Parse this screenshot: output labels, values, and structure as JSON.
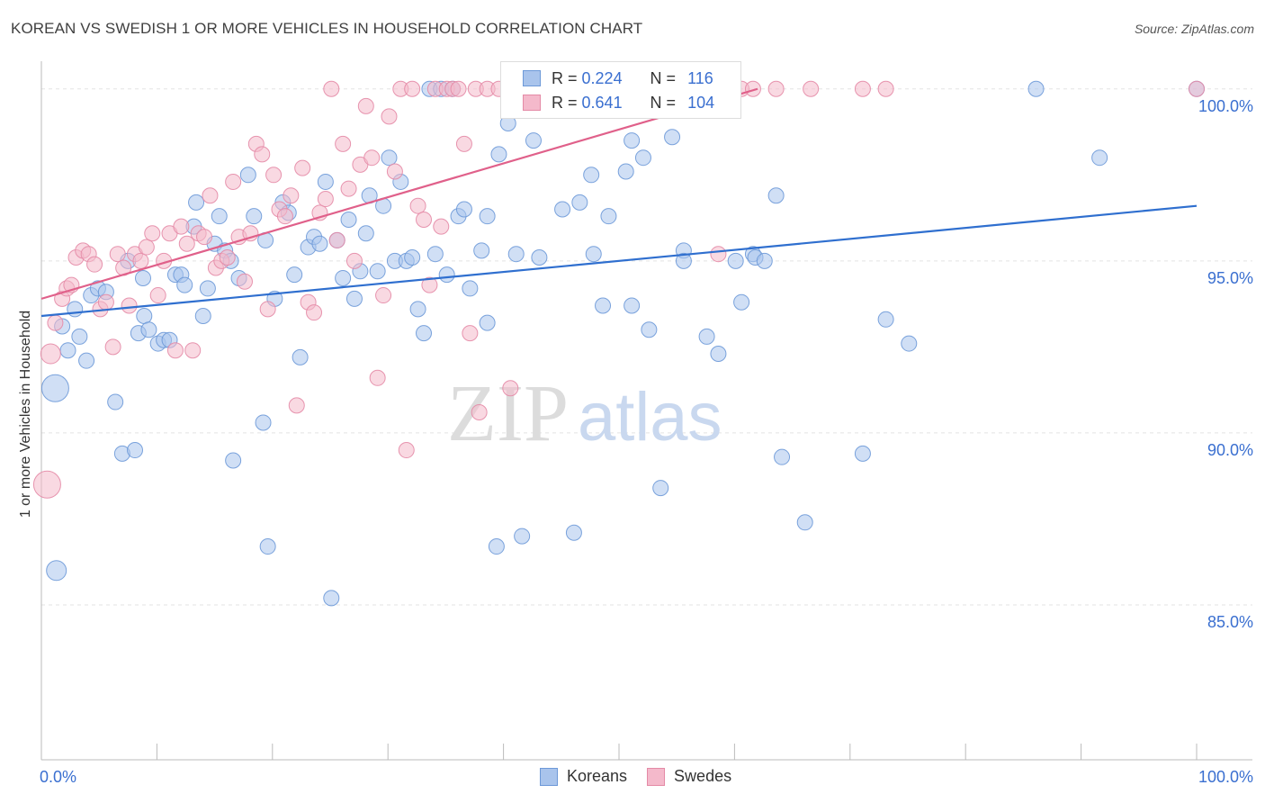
{
  "title": "KOREAN VS SWEDISH 1 OR MORE VEHICLES IN HOUSEHOLD CORRELATION CHART",
  "source": "Source: ZipAtlas.com",
  "watermark": {
    "part1": "ZIP",
    "part2": "atlas"
  },
  "colors": {
    "koreans_fill": "#a9c4ec",
    "koreans_stroke": "#6d99d8",
    "koreans_line": "#2f6fcf",
    "swedes_fill": "#f4b9cb",
    "swedes_stroke": "#e48aa6",
    "swedes_line": "#e0608a",
    "tick_label": "#3a6fd0",
    "grid": "#e3e3e3"
  },
  "legend": {
    "rows": [
      {
        "r_label": "R =",
        "r_value": "0.224",
        "n_label": "N =",
        "n_value": "116"
      },
      {
        "r_label": "R =",
        "r_value": "0.641",
        "n_label": "N =",
        "n_value": "104"
      }
    ]
  },
  "bottom_legend": [
    "Koreans",
    "Swedes"
  ],
  "chart_data": {
    "type": "scatter",
    "title": "KOREAN VS SWEDISH 1 OR MORE VEHICLES IN HOUSEHOLD CORRELATION CHART",
    "xlabel": "",
    "ylabel": "1 or more Vehicles in Household",
    "xlim": [
      0,
      100
    ],
    "ylim": [
      80.5,
      100.7
    ],
    "x_tick_labels": [
      "0.0%",
      "100.0%"
    ],
    "y_ticks": [
      100,
      95,
      90,
      85
    ],
    "y_tick_labels": [
      "100.0%",
      "95.0%",
      "90.0%",
      "85.0%"
    ],
    "grid": true,
    "series": [
      {
        "name": "Koreans",
        "r": 0.224,
        "n": 116,
        "trend": {
          "x": [
            0,
            100
          ],
          "y": [
            93.4,
            96.6
          ]
        },
        "points": [
          [
            1.2,
            91.3,
            3
          ],
          [
            1.3,
            86.0,
            2
          ],
          [
            1.8,
            93.1,
            1
          ],
          [
            2.3,
            92.4,
            1
          ],
          [
            2.9,
            93.6,
            1
          ],
          [
            3.3,
            92.8,
            1
          ],
          [
            3.9,
            92.1,
            1
          ],
          [
            4.3,
            94.0,
            1
          ],
          [
            4.9,
            94.2,
            1
          ],
          [
            5.6,
            94.1,
            1
          ],
          [
            6.4,
            90.9,
            1
          ],
          [
            7.0,
            89.4,
            1
          ],
          [
            7.5,
            95.0,
            1
          ],
          [
            8.1,
            89.5,
            1
          ],
          [
            8.4,
            92.9,
            1
          ],
          [
            8.8,
            94.5,
            1
          ],
          [
            8.9,
            93.4,
            1
          ],
          [
            9.3,
            93.0,
            1
          ],
          [
            10.1,
            92.6,
            1
          ],
          [
            10.6,
            92.7,
            1
          ],
          [
            11.1,
            92.7,
            1
          ],
          [
            11.6,
            94.6,
            1
          ],
          [
            12.1,
            94.6,
            1
          ],
          [
            12.4,
            94.3,
            1
          ],
          [
            13.2,
            96.0,
            1
          ],
          [
            13.4,
            96.7,
            1
          ],
          [
            14.0,
            93.4,
            1
          ],
          [
            14.4,
            94.2,
            1
          ],
          [
            15.0,
            95.5,
            1
          ],
          [
            15.4,
            96.3,
            1
          ],
          [
            15.9,
            95.3,
            1
          ],
          [
            16.4,
            95.0,
            1
          ],
          [
            16.6,
            89.2,
            1
          ],
          [
            17.1,
            94.5,
            1
          ],
          [
            17.9,
            97.5,
            1
          ],
          [
            18.4,
            96.3,
            1
          ],
          [
            19.2,
            90.3,
            1
          ],
          [
            19.4,
            95.6,
            1
          ],
          [
            19.6,
            86.7,
            1
          ],
          [
            20.2,
            93.9,
            1
          ],
          [
            20.9,
            96.7,
            1
          ],
          [
            21.4,
            96.4,
            1
          ],
          [
            21.9,
            94.6,
            1
          ],
          [
            22.4,
            92.2,
            1
          ],
          [
            23.1,
            95.4,
            1
          ],
          [
            23.6,
            95.7,
            1
          ],
          [
            24.1,
            95.5,
            1
          ],
          [
            24.6,
            97.3,
            1
          ],
          [
            25.1,
            85.2,
            1
          ],
          [
            25.6,
            95.6,
            1
          ],
          [
            26.1,
            94.5,
            1
          ],
          [
            26.6,
            96.2,
            1
          ],
          [
            27.1,
            93.9,
            1
          ],
          [
            27.6,
            94.7,
            1
          ],
          [
            28.1,
            95.8,
            1
          ],
          [
            28.4,
            96.9,
            1
          ],
          [
            29.1,
            94.7,
            1
          ],
          [
            29.6,
            96.6,
            1
          ],
          [
            30.1,
            98.0,
            1
          ],
          [
            30.6,
            95.0,
            1
          ],
          [
            31.1,
            97.3,
            1
          ],
          [
            31.6,
            95.0,
            1
          ],
          [
            32.1,
            95.1,
            1
          ],
          [
            32.6,
            93.6,
            1
          ],
          [
            33.1,
            92.9,
            1
          ],
          [
            33.6,
            100.0,
            1
          ],
          [
            34.1,
            95.2,
            1
          ],
          [
            34.6,
            100.0,
            1
          ],
          [
            35.1,
            94.6,
            1
          ],
          [
            35.6,
            100.0,
            1
          ],
          [
            36.1,
            96.3,
            1
          ],
          [
            36.6,
            96.5,
            1
          ],
          [
            37.1,
            94.2,
            1
          ],
          [
            38.1,
            95.3,
            1
          ],
          [
            38.6,
            93.2,
            1
          ],
          [
            38.6,
            96.3,
            1
          ],
          [
            39.4,
            86.7,
            1
          ],
          [
            39.6,
            98.1,
            1
          ],
          [
            40.4,
            99.0,
            1
          ],
          [
            41.1,
            95.2,
            1
          ],
          [
            41.6,
            87.0,
            1
          ],
          [
            42.1,
            100.0,
            1
          ],
          [
            42.6,
            98.5,
            1
          ],
          [
            43.1,
            95.1,
            1
          ],
          [
            45.1,
            96.5,
            1
          ],
          [
            46.1,
            87.1,
            1
          ],
          [
            46.6,
            96.7,
            1
          ],
          [
            47.6,
            97.5,
            1
          ],
          [
            47.8,
            95.2,
            1
          ],
          [
            48.6,
            93.7,
            1
          ],
          [
            49.1,
            96.3,
            1
          ],
          [
            50.6,
            97.6,
            1
          ],
          [
            51.1,
            98.5,
            1
          ],
          [
            51.1,
            93.7,
            1
          ],
          [
            52.1,
            98.0,
            1
          ],
          [
            52.6,
            93.0,
            1
          ],
          [
            53.6,
            88.4,
            1
          ],
          [
            54.6,
            98.6,
            1
          ],
          [
            55.6,
            95.3,
            1
          ],
          [
            55.6,
            95.0,
            1
          ],
          [
            57.6,
            92.8,
            1
          ],
          [
            58.6,
            92.3,
            1
          ],
          [
            58.6,
            100.0,
            1
          ],
          [
            60.1,
            95.0,
            1
          ],
          [
            60.6,
            93.8,
            1
          ],
          [
            61.6,
            95.2,
            1
          ],
          [
            61.8,
            95.1,
            1
          ],
          [
            62.6,
            95.0,
            1
          ],
          [
            63.6,
            96.9,
            1
          ],
          [
            64.1,
            89.3,
            1
          ],
          [
            66.1,
            87.4,
            1
          ],
          [
            71.1,
            89.4,
            1
          ],
          [
            73.1,
            93.3,
            1
          ],
          [
            75.1,
            92.6,
            1
          ],
          [
            86.1,
            100.0,
            1
          ],
          [
            91.6,
            98.0,
            1
          ],
          [
            100.0,
            100.0,
            1
          ]
        ]
      },
      {
        "name": "Swedes",
        "r": 0.641,
        "n": 104,
        "trend": {
          "x": [
            0,
            62
          ],
          "y": [
            93.9,
            100.0
          ]
        },
        "points": [
          [
            0.5,
            88.5,
            3
          ],
          [
            0.8,
            92.3,
            2
          ],
          [
            1.2,
            93.2,
            1
          ],
          [
            1.8,
            93.9,
            1
          ],
          [
            2.2,
            94.2,
            1
          ],
          [
            2.6,
            94.3,
            1
          ],
          [
            3.0,
            95.1,
            1
          ],
          [
            3.6,
            95.3,
            1
          ],
          [
            4.1,
            95.2,
            1
          ],
          [
            4.6,
            94.9,
            1
          ],
          [
            5.1,
            93.6,
            1
          ],
          [
            5.6,
            93.8,
            1
          ],
          [
            6.2,
            92.5,
            1
          ],
          [
            6.6,
            95.2,
            1
          ],
          [
            7.1,
            94.8,
            1
          ],
          [
            7.6,
            93.7,
            1
          ],
          [
            8.1,
            95.2,
            1
          ],
          [
            8.6,
            95.0,
            1
          ],
          [
            9.1,
            95.4,
            1
          ],
          [
            9.6,
            95.8,
            1
          ],
          [
            10.1,
            94.0,
            1
          ],
          [
            10.6,
            95.0,
            1
          ],
          [
            11.1,
            95.8,
            1
          ],
          [
            11.6,
            92.4,
            1
          ],
          [
            12.1,
            96.0,
            1
          ],
          [
            12.6,
            95.5,
            1
          ],
          [
            13.1,
            92.4,
            1
          ],
          [
            13.6,
            95.8,
            1
          ],
          [
            14.1,
            95.7,
            1
          ],
          [
            14.6,
            96.9,
            1
          ],
          [
            15.1,
            94.8,
            1
          ],
          [
            15.6,
            95.0,
            1
          ],
          [
            16.1,
            95.1,
            1
          ],
          [
            16.6,
            97.3,
            1
          ],
          [
            17.1,
            95.7,
            1
          ],
          [
            17.6,
            94.4,
            1
          ],
          [
            18.1,
            95.8,
            1
          ],
          [
            18.6,
            98.4,
            1
          ],
          [
            19.1,
            98.1,
            1
          ],
          [
            19.6,
            93.6,
            1
          ],
          [
            20.1,
            97.5,
            1
          ],
          [
            20.6,
            96.5,
            1
          ],
          [
            21.1,
            96.3,
            1
          ],
          [
            21.6,
            96.9,
            1
          ],
          [
            22.1,
            90.8,
            1
          ],
          [
            22.6,
            97.7,
            1
          ],
          [
            23.1,
            93.8,
            1
          ],
          [
            23.6,
            93.5,
            1
          ],
          [
            24.1,
            96.4,
            1
          ],
          [
            24.6,
            96.8,
            1
          ],
          [
            25.1,
            100.0,
            1
          ],
          [
            25.6,
            95.6,
            1
          ],
          [
            26.1,
            98.4,
            1
          ],
          [
            26.6,
            97.1,
            1
          ],
          [
            27.1,
            95.0,
            1
          ],
          [
            27.6,
            97.8,
            1
          ],
          [
            28.1,
            99.5,
            1
          ],
          [
            28.6,
            98.0,
            1
          ],
          [
            29.1,
            91.6,
            1
          ],
          [
            29.6,
            94.0,
            1
          ],
          [
            30.1,
            99.2,
            1
          ],
          [
            30.6,
            97.6,
            1
          ],
          [
            31.1,
            100.0,
            1
          ],
          [
            31.6,
            89.5,
            1
          ],
          [
            32.1,
            100.0,
            1
          ],
          [
            32.6,
            96.6,
            1
          ],
          [
            33.1,
            96.2,
            1
          ],
          [
            33.6,
            94.3,
            1
          ],
          [
            34.1,
            100.0,
            1
          ],
          [
            34.6,
            96.0,
            1
          ],
          [
            35.1,
            100.0,
            1
          ],
          [
            35.6,
            100.0,
            1
          ],
          [
            36.1,
            100.0,
            1
          ],
          [
            36.6,
            98.4,
            1
          ],
          [
            37.1,
            92.9,
            1
          ],
          [
            37.6,
            100.0,
            1
          ],
          [
            37.9,
            90.6,
            1
          ],
          [
            38.6,
            100.0,
            1
          ],
          [
            39.6,
            100.0,
            1
          ],
          [
            40.6,
            91.3,
            1
          ],
          [
            41.6,
            100.0,
            1
          ],
          [
            42.6,
            100.0,
            1
          ],
          [
            43.6,
            100.0,
            1
          ],
          [
            44.6,
            100.0,
            1
          ],
          [
            45.6,
            100.0,
            1
          ],
          [
            46.6,
            100.0,
            1
          ],
          [
            47.6,
            100.0,
            1
          ],
          [
            48.6,
            100.0,
            1
          ],
          [
            49.6,
            100.0,
            1
          ],
          [
            50.6,
            100.0,
            1
          ],
          [
            51.6,
            100.0,
            1
          ],
          [
            53.6,
            100.0,
            1
          ],
          [
            55.6,
            100.0,
            1
          ],
          [
            57.6,
            100.0,
            1
          ],
          [
            58.6,
            95.2,
            1
          ],
          [
            60.6,
            100.0,
            1
          ],
          [
            61.6,
            100.0,
            1
          ],
          [
            63.6,
            100.0,
            1
          ],
          [
            66.6,
            100.0,
            1
          ],
          [
            71.1,
            100.0,
            1
          ],
          [
            73.1,
            100.0,
            1
          ],
          [
            100.0,
            100.0,
            1
          ]
        ]
      }
    ]
  }
}
